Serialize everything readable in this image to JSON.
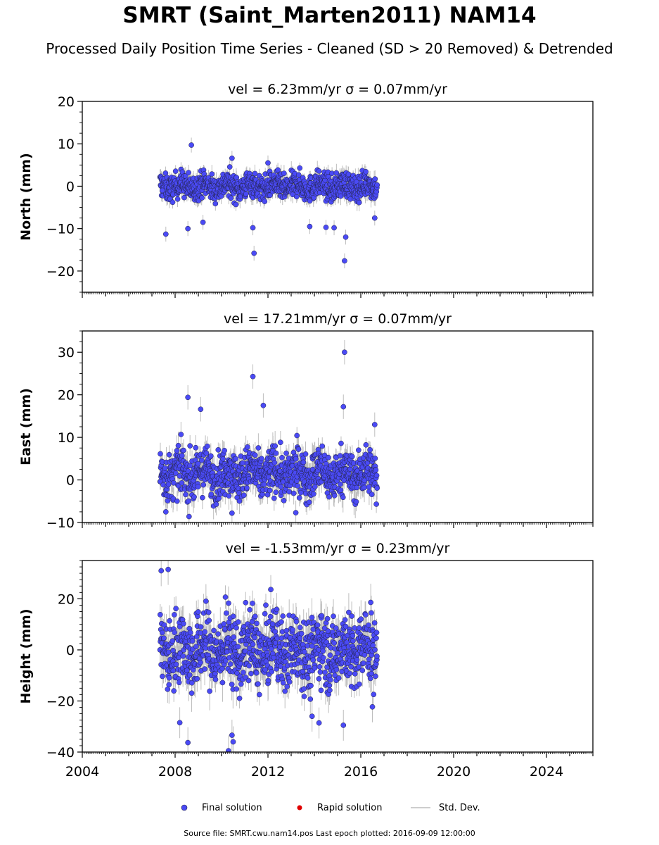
{
  "title": "SMRT (Saint_Marten2011) NAM14",
  "subtitle": "Processed Daily Position Time Series - Cleaned (SD > 20 Removed) & Detrended",
  "legend": {
    "final": "Final solution",
    "rapid": "Rapid solution",
    "std": "Std. Dev."
  },
  "footer": "Source file: SMRT.cwu.nam14.pos  Last epoch plotted: 2016-09-09 12:00:00",
  "colors": {
    "final": "#4a4af5",
    "rapid": "#e00000",
    "std": "#bdbdbd",
    "edge": "#222244"
  },
  "chart_data": [
    {
      "type": "scatter",
      "title": "vel = 6.23mm/yr   σ = 0.07mm/yr",
      "ylabel": "North (mm)",
      "xlim": [
        2004,
        2026
      ],
      "ylim": [
        -25,
        20
      ],
      "yticks": [
        -20,
        -10,
        0,
        10,
        20
      ],
      "data_range": [
        2007.35,
        2016.7
      ],
      "series": [
        {
          "name": "Final solution",
          "x": [
            2007.45,
            2008.7,
            2007.6,
            2011.4,
            2011.35,
            2015.3,
            2015.35,
            2010.45,
            2013.8,
            2014.5,
            2008.55,
            2012.0,
            2009.2,
            2016.6,
            2014.85
          ],
          "y": [
            -1,
            9.7,
            -11.3,
            -15.8,
            -9.8,
            -17.6,
            -12.0,
            6.6,
            -9.5,
            -9.7,
            -10.0,
            5.5,
            -8.5,
            -7.5,
            -9.8
          ]
        }
      ]
    },
    {
      "type": "scatter",
      "title": "vel = 17.21mm/yr   σ = 0.07mm/yr",
      "ylabel": "East (mm)",
      "xlim": [
        2004,
        2026
      ],
      "ylim": [
        -10,
        35
      ],
      "yticks": [
        -10,
        0,
        10,
        20,
        30
      ],
      "data_range": [
        2007.35,
        2016.7
      ],
      "series": [
        {
          "name": "Final solution",
          "x": [
            2011.35,
            2015.3,
            2015.25,
            2008.55,
            2007.6,
            2010.45,
            2013.2,
            2009.1,
            2011.8,
            2008.6,
            2016.6
          ],
          "y": [
            24.3,
            30.0,
            17.2,
            19.4,
            -7.5,
            -7.8,
            -7.7,
            16.6,
            17.5,
            -8.6,
            13.0
          ]
        }
      ]
    },
    {
      "type": "scatter",
      "title": "vel = -1.53mm/yr   σ = 0.23mm/yr",
      "ylabel": "Height (mm)",
      "xlim": [
        2004,
        2026
      ],
      "ylim": [
        -40,
        35
      ],
      "yticks": [
        -40,
        -20,
        0,
        20
      ],
      "xticks": [
        2004,
        2008,
        2012,
        2016,
        2020,
        2024
      ],
      "data_range": [
        2007.35,
        2016.7
      ],
      "series": [
        {
          "name": "Final solution",
          "x": [
            2007.4,
            2007.7,
            2008.55,
            2010.3,
            2010.5,
            2010.45,
            2015.25,
            2008.2,
            2013.9,
            2014.2,
            2016.5
          ],
          "y": [
            31.0,
            31.5,
            -36.3,
            -39.5,
            -36.0,
            -33.4,
            -29.5,
            -28.5,
            -26.0,
            -28.6,
            -22.3
          ]
        }
      ]
    }
  ]
}
